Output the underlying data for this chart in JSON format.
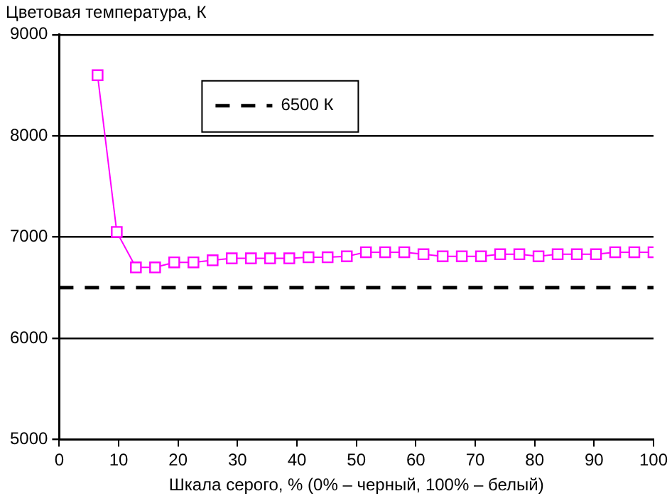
{
  "chart_data": {
    "type": "line",
    "ylabel": "Цветовая температура, К",
    "xlabel": "Шкала серого, % (0% – черный, 100% – белый)",
    "series": [
      {
        "color": "#ff00ff",
        "x": [
          6.45,
          9.68,
          12.9,
          16.13,
          19.35,
          22.58,
          25.81,
          29.03,
          32.26,
          35.48,
          38.71,
          41.94,
          45.16,
          48.39,
          51.61,
          54.84,
          58.06,
          61.29,
          64.52,
          67.74,
          70.97,
          74.19,
          77.42,
          80.65,
          83.87,
          87.1,
          90.32,
          93.55,
          96.77,
          100
        ],
        "values": [
          8600,
          7050,
          6700,
          6700,
          6750,
          6750,
          6770,
          6790,
          6790,
          6790,
          6790,
          6800,
          6800,
          6810,
          6850,
          6850,
          6850,
          6830,
          6810,
          6810,
          6810,
          6830,
          6830,
          6810,
          6830,
          6830,
          6830,
          6850,
          6850,
          6850
        ]
      }
    ],
    "ref_lines": [
      {
        "axis": "y",
        "value": 6500,
        "label": "6500 К",
        "color": "#000000",
        "line_style": "dashed"
      }
    ],
    "xlim": [
      0,
      100
    ],
    "xticks": [
      0,
      10,
      20,
      30,
      40,
      50,
      60,
      70,
      80,
      90,
      100
    ],
    "ylim": [
      5000,
      9000
    ],
    "yticks": [
      5000,
      6000,
      7000,
      8000,
      9000
    ],
    "grid": "y",
    "legend": "top",
    "marker": "square",
    "line_style": "solid"
  }
}
